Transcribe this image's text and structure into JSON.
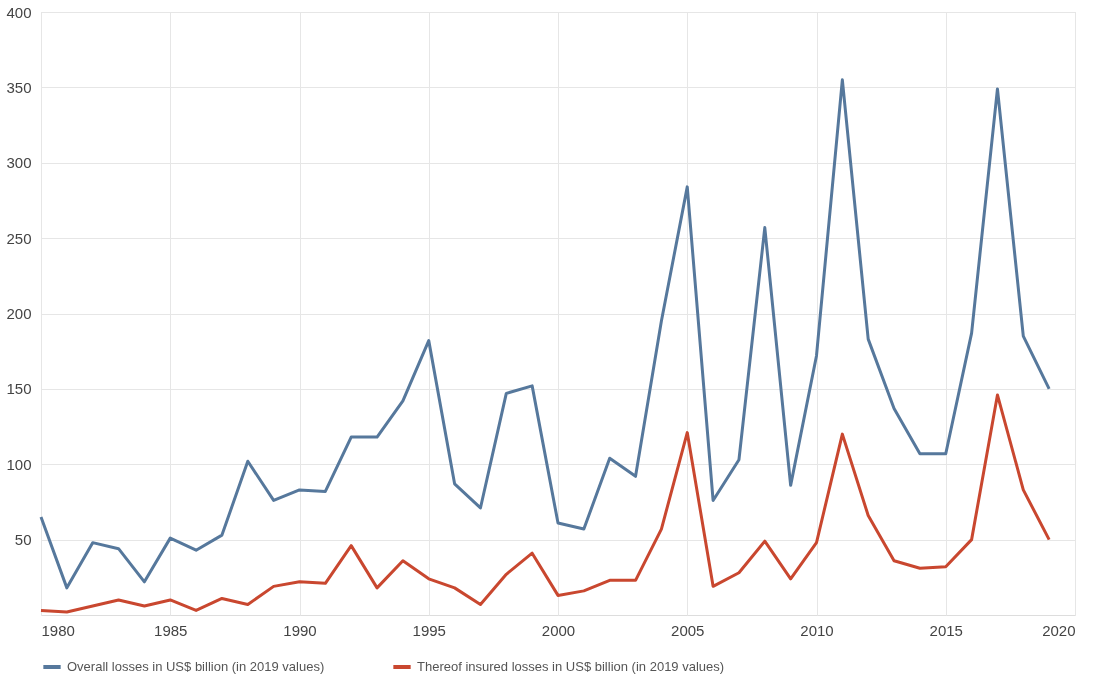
{
  "chart_data": {
    "type": "line",
    "x": [
      1980,
      1981,
      1982,
      1983,
      1984,
      1985,
      1986,
      1987,
      1988,
      1989,
      1990,
      1991,
      1992,
      1993,
      1994,
      1995,
      1996,
      1997,
      1998,
      1999,
      2000,
      2001,
      2002,
      2003,
      2004,
      2005,
      2006,
      2007,
      2008,
      2009,
      2010,
      2011,
      2012,
      2013,
      2014,
      2015,
      2016,
      2017,
      2018,
      2019
    ],
    "series": [
      {
        "name": "Overall losses in US$ billion (in 2019 values)",
        "color": "#56789c",
        "values": [
          65,
          18,
          48,
          44,
          22,
          51,
          43,
          53,
          102,
          76,
          83,
          82,
          118,
          118,
          142,
          182,
          87,
          71,
          147,
          152,
          61,
          57,
          104,
          92,
          195,
          284,
          76,
          103,
          257,
          86,
          172,
          355,
          183,
          137,
          107,
          107,
          187,
          349,
          185,
          150
        ]
      },
      {
        "name": "Thereof insured losses in US$ billion (in 2019 values)",
        "color": "#c9472f",
        "values": [
          3,
          2,
          6,
          10,
          6,
          10,
          3,
          11,
          7,
          19,
          22,
          21,
          46,
          18,
          36,
          24,
          18,
          7,
          27,
          41,
          13,
          16,
          23,
          23,
          57,
          121,
          19,
          28,
          49,
          24,
          48,
          120,
          66,
          36,
          31,
          32,
          50,
          146,
          83,
          50
        ]
      }
    ],
    "xlim": [
      1980,
      2020
    ],
    "xticks": [
      1980,
      1985,
      1990,
      1995,
      2000,
      2005,
      2010,
      2015,
      2020
    ],
    "ylim": [
      0,
      400
    ],
    "yticks": [
      50,
      100,
      150,
      200,
      250,
      300,
      350,
      400
    ],
    "grid": true,
    "legend": "bottom",
    "marker": "none",
    "line_style": "solid"
  }
}
